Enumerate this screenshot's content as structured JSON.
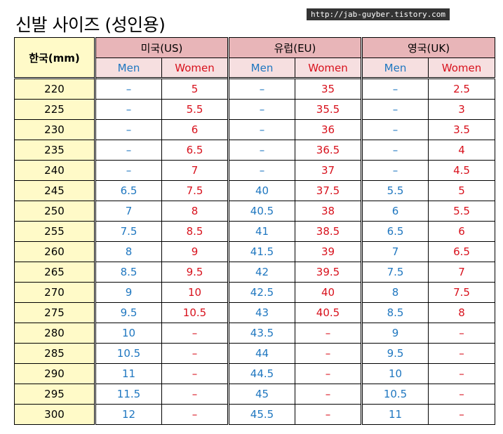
{
  "title": "신발 사이즈 (성인용)",
  "watermark": "http://jab-guyber.tistory.com",
  "table": {
    "korea_header": "한국(mm)",
    "regions": [
      {
        "label": "미국(US)",
        "men_label": "Men",
        "women_label": "Women"
      },
      {
        "label": "유럽(EU)",
        "men_label": "Men",
        "women_label": "Women"
      },
      {
        "label": "영국(UK)",
        "men_label": "Men",
        "women_label": "Women"
      }
    ],
    "rows": [
      {
        "kr": "220",
        "us_men": "–",
        "us_women": "5",
        "eu_men": "–",
        "eu_women": "35",
        "uk_men": "–",
        "uk_women": "2.5"
      },
      {
        "kr": "225",
        "us_men": "–",
        "us_women": "5.5",
        "eu_men": "–",
        "eu_women": "35.5",
        "uk_men": "–",
        "uk_women": "3"
      },
      {
        "kr": "230",
        "us_men": "–",
        "us_women": "6",
        "eu_men": "–",
        "eu_women": "36",
        "uk_men": "–",
        "uk_women": "3.5"
      },
      {
        "kr": "235",
        "us_men": "–",
        "us_women": "6.5",
        "eu_men": "–",
        "eu_women": "36.5",
        "uk_men": "–",
        "uk_women": "4"
      },
      {
        "kr": "240",
        "us_men": "–",
        "us_women": "7",
        "eu_men": "–",
        "eu_women": "37",
        "uk_men": "–",
        "uk_women": "4.5"
      },
      {
        "kr": "245",
        "us_men": "6.5",
        "us_women": "7.5",
        "eu_men": "40",
        "eu_women": "37.5",
        "uk_men": "5.5",
        "uk_women": "5"
      },
      {
        "kr": "250",
        "us_men": "7",
        "us_women": "8",
        "eu_men": "40.5",
        "eu_women": "38",
        "uk_men": "6",
        "uk_women": "5.5"
      },
      {
        "kr": "255",
        "us_men": "7.5",
        "us_women": "8.5",
        "eu_men": "41",
        "eu_women": "38.5",
        "uk_men": "6.5",
        "uk_women": "6"
      },
      {
        "kr": "260",
        "us_men": "8",
        "us_women": "9",
        "eu_men": "41.5",
        "eu_women": "39",
        "uk_men": "7",
        "uk_women": "6.5"
      },
      {
        "kr": "265",
        "us_men": "8.5",
        "us_women": "9.5",
        "eu_men": "42",
        "eu_women": "39.5",
        "uk_men": "7.5",
        "uk_women": "7"
      },
      {
        "kr": "270",
        "us_men": "9",
        "us_women": "10",
        "eu_men": "42.5",
        "eu_women": "40",
        "uk_men": "8",
        "uk_women": "7.5"
      },
      {
        "kr": "275",
        "us_men": "9.5",
        "us_women": "10.5",
        "eu_men": "43",
        "eu_women": "40.5",
        "uk_men": "8.5",
        "uk_women": "8"
      },
      {
        "kr": "280",
        "us_men": "10",
        "us_women": "–",
        "eu_men": "43.5",
        "eu_women": "–",
        "uk_men": "9",
        "uk_women": "–"
      },
      {
        "kr": "285",
        "us_men": "10.5",
        "us_women": "–",
        "eu_men": "44",
        "eu_women": "–",
        "uk_men": "9.5",
        "uk_women": "–"
      },
      {
        "kr": "290",
        "us_men": "11",
        "us_women": "–",
        "eu_men": "44.5",
        "eu_women": "–",
        "uk_men": "10",
        "uk_women": "–"
      },
      {
        "kr": "295",
        "us_men": "11.5",
        "us_women": "–",
        "eu_men": "45",
        "eu_women": "–",
        "uk_men": "10.5",
        "uk_women": "–"
      },
      {
        "kr": "300",
        "us_men": "12",
        "us_women": "–",
        "eu_men": "45.5",
        "eu_women": "–",
        "uk_men": "11",
        "uk_women": "–"
      }
    ]
  }
}
